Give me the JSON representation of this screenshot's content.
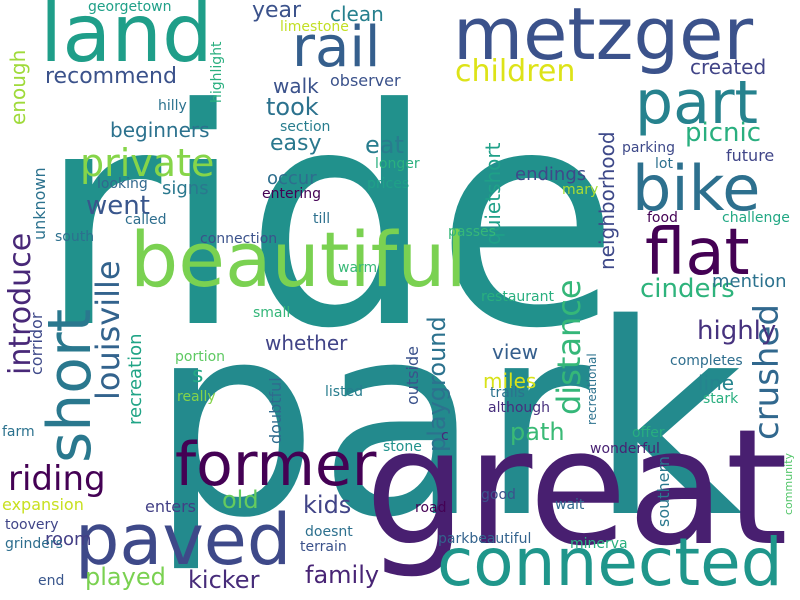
{
  "words": [
    {
      "text": "ride",
      "color": "#21918c"
    },
    {
      "text": "park",
      "color": "#238a8d"
    },
    {
      "text": "great",
      "color": "#481f70"
    },
    {
      "text": "beautiful",
      "color": "#7ad151"
    },
    {
      "text": "metzger",
      "color": "#3b528b"
    },
    {
      "text": "land",
      "color": "#1f9e89"
    },
    {
      "text": "short",
      "color": "#2a788e"
    },
    {
      "text": "bike",
      "color": "#2d708e"
    },
    {
      "text": "part",
      "color": "#26828e"
    },
    {
      "text": "flat",
      "color": "#440154"
    },
    {
      "text": "paved",
      "color": "#3e4989"
    },
    {
      "text": "connected",
      "color": "#1f968b"
    },
    {
      "text": "former",
      "color": "#440154"
    },
    {
      "text": "rail",
      "color": "#355f8d"
    },
    {
      "text": "private",
      "color": "#86d549"
    },
    {
      "text": "children",
      "color": "#dde318"
    },
    {
      "text": "distance",
      "color": "#35b779"
    },
    {
      "text": "louisville",
      "color": "#33638d"
    },
    {
      "text": "introduce",
      "color": "#482878"
    },
    {
      "text": "riding",
      "color": "#440154"
    },
    {
      "text": "crushed",
      "color": "#31688e"
    },
    {
      "text": "highly",
      "color": "#46327e"
    },
    {
      "text": "cinders",
      "color": "#2eb37c"
    },
    {
      "text": "picnic",
      "color": "#29af7f"
    },
    {
      "text": "playground",
      "color": "#2c728e"
    },
    {
      "text": "kids",
      "color": "#414487"
    },
    {
      "text": "old",
      "color": "#65cb5e"
    },
    {
      "text": "family",
      "color": "#482475"
    },
    {
      "text": "kicker",
      "color": "#472c7a"
    },
    {
      "text": "played",
      "color": "#7ad151"
    },
    {
      "text": "took",
      "color": "#2c728e"
    },
    {
      "text": "eat",
      "color": "#287d8e"
    },
    {
      "text": "went",
      "color": "#39568c"
    },
    {
      "text": "path",
      "color": "#3aba76"
    },
    {
      "text": "easy",
      "color": "#2a788e"
    },
    {
      "text": "year",
      "color": "#3b528b"
    },
    {
      "text": "clean",
      "color": "#27808e"
    },
    {
      "text": "recommend",
      "color": "#3b528b"
    },
    {
      "text": "beginners",
      "color": "#2c728e"
    },
    {
      "text": "walk",
      "color": "#3b528b"
    },
    {
      "text": "created",
      "color": "#414487"
    },
    {
      "text": "quietshort",
      "color": "#1fa088"
    },
    {
      "text": "neighborhood",
      "color": "#3e4989"
    },
    {
      "text": "enough",
      "color": "#9fda3a"
    },
    {
      "text": "mention",
      "color": "#2c728e"
    },
    {
      "text": "whether",
      "color": "#414487"
    },
    {
      "text": "line",
      "color": "#25848e"
    },
    {
      "text": "view",
      "color": "#355f8d"
    },
    {
      "text": "miles",
      "color": "#d8e219"
    },
    {
      "text": "endings",
      "color": "#3e4989"
    },
    {
      "text": "future",
      "color": "#404588"
    },
    {
      "text": "occur",
      "color": "#2e6e8e"
    },
    {
      "text": "signs",
      "color": "#2a788e"
    },
    {
      "text": "expansion",
      "color": "#c8e020"
    },
    {
      "text": "room",
      "color": "#433e85"
    },
    {
      "text": "enters",
      "color": "#423f85"
    },
    {
      "text": "recreation",
      "color": "#20a486"
    },
    {
      "text": "unknown",
      "color": "#2c728e"
    },
    {
      "text": "outside",
      "color": "#3b528b"
    },
    {
      "text": "doubtful",
      "color": "#2f6b8e"
    },
    {
      "text": "southern",
      "color": "#2a788e"
    },
    {
      "text": "corridor",
      "color": "#3e4989"
    },
    {
      "text": "s",
      "color": "#22a884"
    },
    {
      "text": "highlight",
      "color": "#29af7f"
    },
    {
      "text": "georgetown",
      "color": "#1fa088"
    },
    {
      "text": "limestone",
      "color": "#c2df23"
    },
    {
      "text": "observer",
      "color": "#3b528b"
    },
    {
      "text": "section",
      "color": "#287d8e"
    },
    {
      "text": "longer",
      "color": "#2ab07f"
    },
    {
      "text": "prices",
      "color": "#1fa088"
    },
    {
      "text": "mary",
      "color": "#aadc32"
    },
    {
      "text": "entering",
      "color": "#440154"
    },
    {
      "text": "till",
      "color": "#2d708e"
    },
    {
      "text": "passes",
      "color": "#35b779"
    },
    {
      "text": "warm",
      "color": "#38b977"
    },
    {
      "text": "connection",
      "color": "#3b528b"
    },
    {
      "text": "called",
      "color": "#2e6e8e"
    },
    {
      "text": "looking",
      "color": "#31688e"
    },
    {
      "text": "hilly",
      "color": "#2c728e"
    },
    {
      "text": "south",
      "color": "#2d708e"
    },
    {
      "text": "small",
      "color": "#34b679"
    },
    {
      "text": "portion",
      "color": "#5ec962"
    },
    {
      "text": "really",
      "color": "#84d44b"
    },
    {
      "text": "listed",
      "color": "#287d8e"
    },
    {
      "text": "trails",
      "color": "#2c728e"
    },
    {
      "text": "although",
      "color": "#472f7d"
    },
    {
      "text": "restaurant",
      "color": "#29af7f"
    },
    {
      "text": "parking",
      "color": "#3e4989"
    },
    {
      "text": "lot",
      "color": "#2d708e"
    },
    {
      "text": "food",
      "color": "#440154"
    },
    {
      "text": "challenge",
      "color": "#22a884"
    },
    {
      "text": "recreational",
      "color": "#2c728e"
    },
    {
      "text": "completes",
      "color": "#2e6e8e"
    },
    {
      "text": "stark",
      "color": "#29af7f"
    },
    {
      "text": "offer",
      "color": "#28ae80"
    },
    {
      "text": "wonderful",
      "color": "#482173"
    },
    {
      "text": "community",
      "color": "#52c569"
    },
    {
      "text": "stone",
      "color": "#20928c"
    },
    {
      "text": "c",
      "color": "#482878"
    },
    {
      "text": "farm",
      "color": "#2c728e"
    },
    {
      "text": "toovery",
      "color": "#404588"
    },
    {
      "text": "grinders",
      "color": "#2e6e8e"
    },
    {
      "text": "end",
      "color": "#39568c"
    },
    {
      "text": "doesnt",
      "color": "#2d708e"
    },
    {
      "text": "terrain",
      "color": "#3b528b"
    },
    {
      "text": "parkbeautiful",
      "color": "#33638d"
    },
    {
      "text": "minerva",
      "color": "#2ab07f"
    },
    {
      "text": "good",
      "color": "#3b528b"
    },
    {
      "text": "road",
      "color": "#440154"
    },
    {
      "text": "wait",
      "color": "#31688e"
    }
  ]
}
